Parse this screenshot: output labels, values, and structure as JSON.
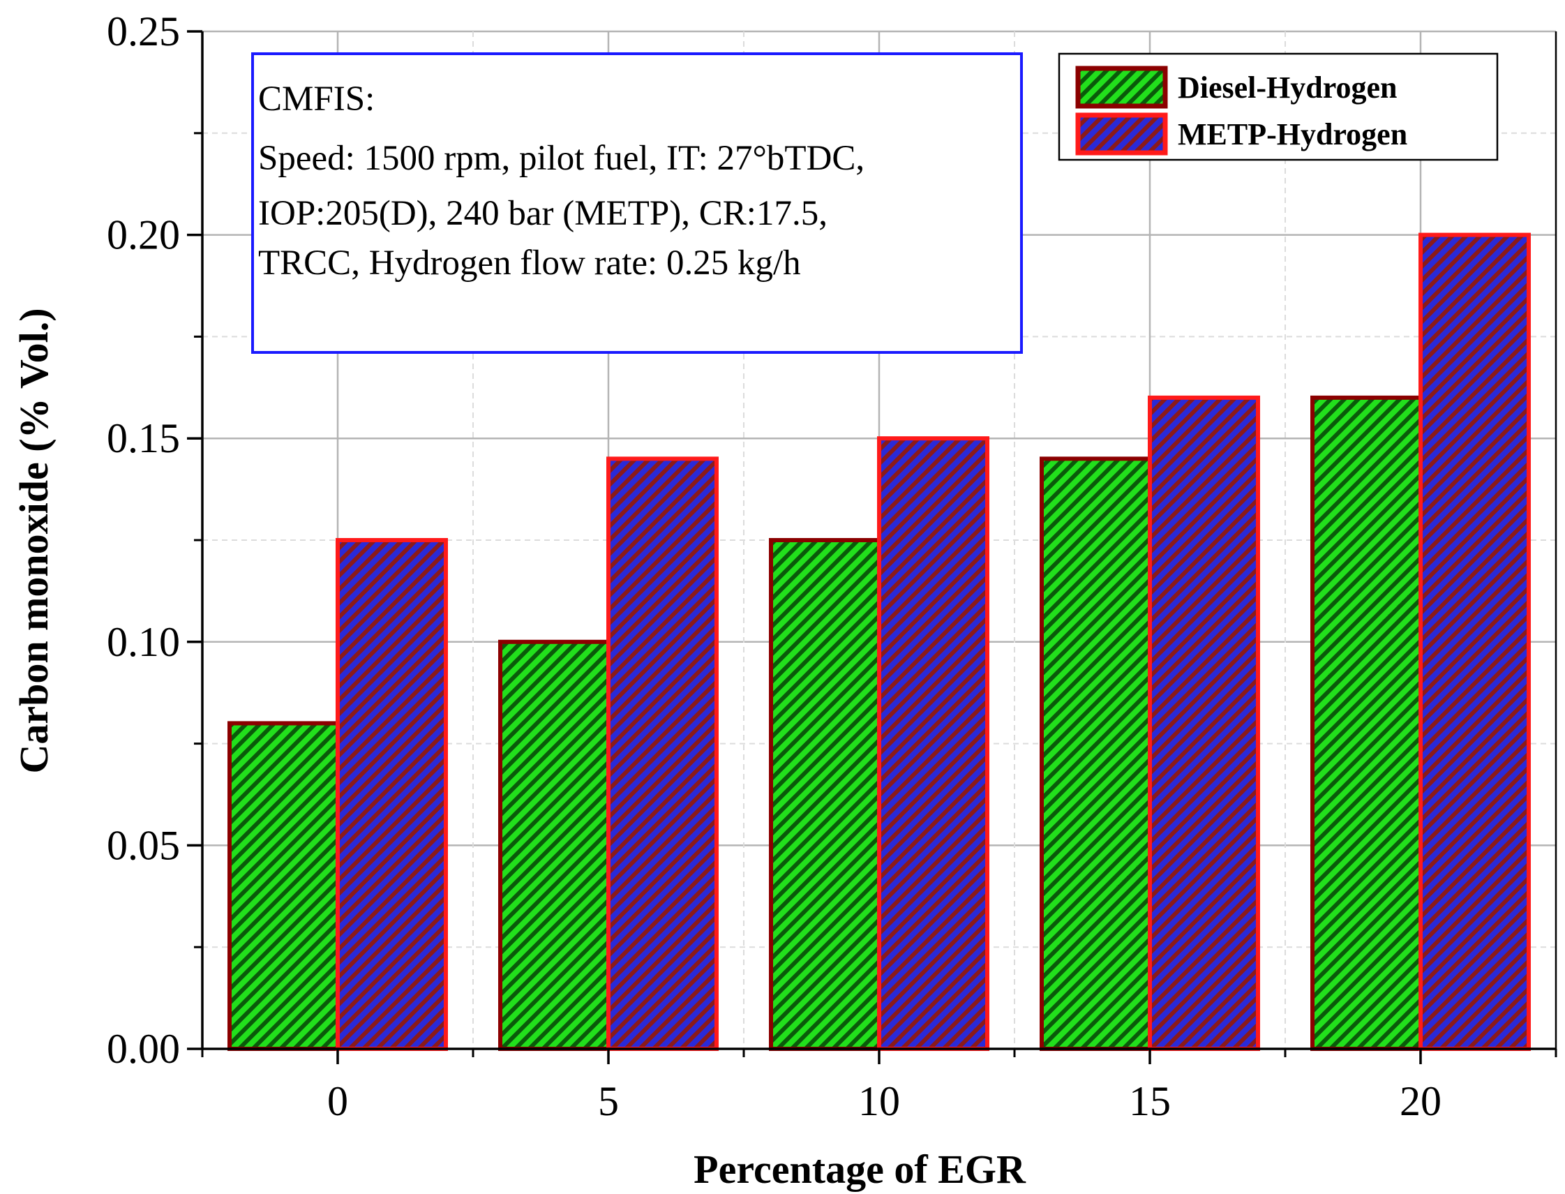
{
  "chart_data": {
    "type": "bar",
    "title": "",
    "xlabel": "Percentage of EGR",
    "ylabel": "Carbon monoxide (% Vol.)",
    "categories": [
      "0",
      "5",
      "10",
      "15",
      "20"
    ],
    "series": [
      {
        "name": "Diesel-Hydrogen",
        "values": [
          0.08,
          0.1,
          0.125,
          0.145,
          0.16
        ],
        "fill": "#22e01c",
        "hatch": "#0a5a0a",
        "edge": "#8b0000"
      },
      {
        "name": "METP-Hydrogen",
        "values": [
          0.125,
          0.145,
          0.15,
          0.16,
          0.2
        ],
        "fill": "#2a2ad8",
        "hatch": "#8b1a1a",
        "edge": "#ff1a1a"
      }
    ],
    "ylim": [
      0,
      0.25
    ],
    "yticks": [
      "0.00",
      "0.05",
      "0.10",
      "0.15",
      "0.20",
      "0.25"
    ],
    "grid": true,
    "legend_position": "top-right",
    "annotation_lines": [
      "CMFIS:",
      "Speed: 1500 rpm, pilot fuel, IT: 27°bTDC,",
      "IOP:205(D), 240 bar (METP), CR:17.5,",
      "TRCC, Hydrogen flow rate: 0.25 kg/h"
    ]
  }
}
